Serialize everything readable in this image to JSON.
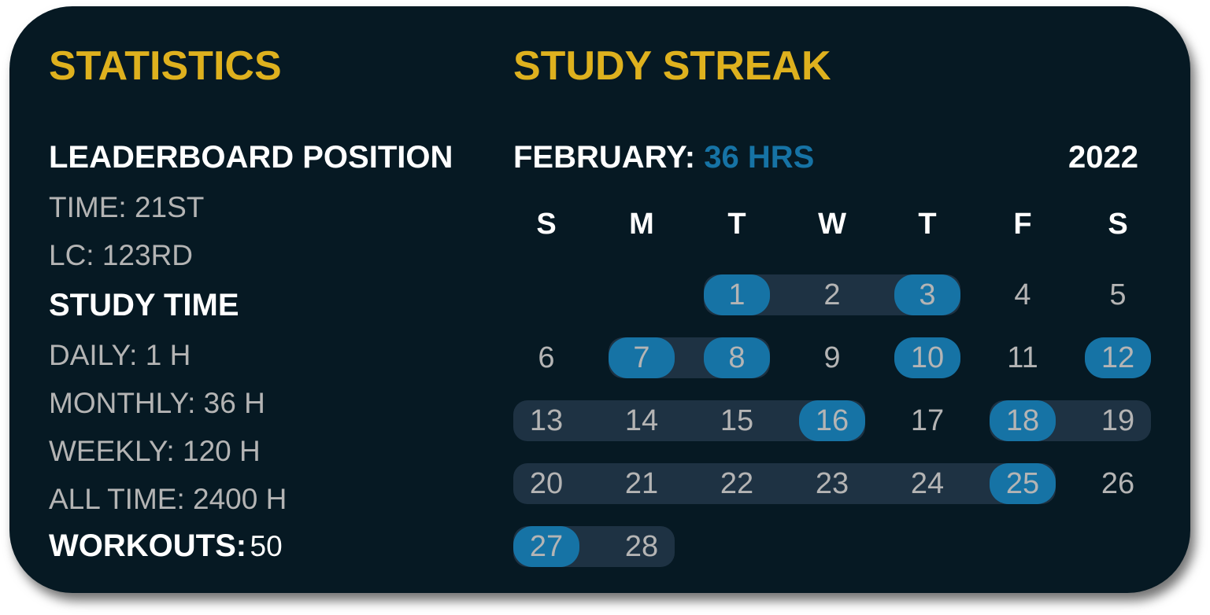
{
  "colors": {
    "accent": "#deb11e",
    "streak": "#1673a5",
    "band": "#1e3243",
    "background": "#061923"
  },
  "statistics": {
    "title": "STATISTICS",
    "leaderboard_heading": "LEADERBOARD POSITION",
    "time": "TIME: 21ST",
    "lc": "LC: 123RD",
    "study_time_heading": "STUDY TIME",
    "daily": "DAILY: 1 H",
    "monthly": "MONTHLY: 36 H",
    "weekly": "WEEKLY: 120 H",
    "all_time": "ALL TIME: 2400 H",
    "workouts_label": "WORKOUTS:",
    "workouts_value": "50"
  },
  "streak": {
    "title": "STUDY STREAK",
    "month_label": "FEBRUARY:",
    "month_hours": "36 HRS",
    "year": "2022",
    "weekdays": [
      "S",
      "M",
      "T",
      "W",
      "T",
      "F",
      "S"
    ],
    "first_weekday": 2,
    "days": [
      {
        "d": "1",
        "studied": true,
        "streak": true
      },
      {
        "d": "2",
        "studied": false,
        "streak": true
      },
      {
        "d": "3",
        "studied": true,
        "streak": true
      },
      {
        "d": "4",
        "studied": false,
        "streak": false
      },
      {
        "d": "5",
        "studied": false,
        "streak": false
      },
      {
        "d": "6",
        "studied": false,
        "streak": false
      },
      {
        "d": "7",
        "studied": true,
        "streak": true
      },
      {
        "d": "8",
        "studied": true,
        "streak": true
      },
      {
        "d": "9",
        "studied": false,
        "streak": false
      },
      {
        "d": "10",
        "studied": true,
        "streak": false
      },
      {
        "d": "11",
        "studied": false,
        "streak": false
      },
      {
        "d": "12",
        "studied": true,
        "streak": false
      },
      {
        "d": "13",
        "studied": false,
        "streak": true
      },
      {
        "d": "14",
        "studied": false,
        "streak": true
      },
      {
        "d": "15",
        "studied": false,
        "streak": true
      },
      {
        "d": "16",
        "studied": true,
        "streak": true
      },
      {
        "d": "17",
        "studied": false,
        "streak": false
      },
      {
        "d": "18",
        "studied": true,
        "streak": true
      },
      {
        "d": "19",
        "studied": false,
        "streak": true
      },
      {
        "d": "20",
        "studied": false,
        "streak": true
      },
      {
        "d": "21",
        "studied": false,
        "streak": true
      },
      {
        "d": "22",
        "studied": false,
        "streak": true
      },
      {
        "d": "23",
        "studied": false,
        "streak": true
      },
      {
        "d": "24",
        "studied": false,
        "streak": true
      },
      {
        "d": "25",
        "studied": true,
        "streak": true
      },
      {
        "d": "26",
        "studied": false,
        "streak": false
      },
      {
        "d": "27",
        "studied": true,
        "streak": true
      },
      {
        "d": "28",
        "studied": false,
        "streak": true
      }
    ]
  }
}
